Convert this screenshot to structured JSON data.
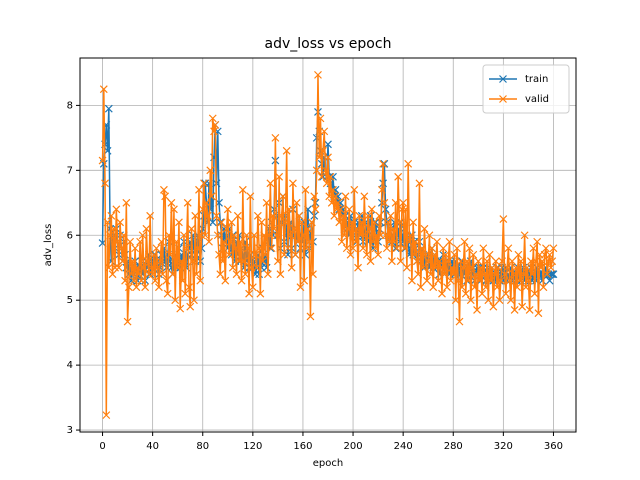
{
  "chart_data": {
    "type": "line",
    "title": "adv_loss vs epoch",
    "xlabel": "epoch",
    "ylabel": "adv_loss",
    "x": [
      0,
      1,
      2,
      3,
      4,
      5,
      6,
      7,
      8,
      9,
      10,
      11,
      12,
      13,
      14,
      15,
      16,
      17,
      18,
      19,
      20,
      21,
      22,
      23,
      24,
      25,
      26,
      27,
      28,
      29,
      30,
      31,
      32,
      33,
      34,
      35,
      36,
      37,
      38,
      39,
      40,
      41,
      42,
      43,
      44,
      45,
      46,
      47,
      48,
      49,
      50,
      51,
      52,
      53,
      54,
      55,
      56,
      57,
      58,
      59,
      60,
      61,
      62,
      63,
      64,
      65,
      66,
      67,
      68,
      69,
      70,
      71,
      72,
      73,
      74,
      75,
      76,
      77,
      78,
      79,
      80,
      81,
      82,
      83,
      84,
      85,
      86,
      87,
      88,
      89,
      90,
      91,
      92,
      93,
      94,
      95,
      96,
      97,
      98,
      99,
      100,
      101,
      102,
      103,
      104,
      105,
      106,
      107,
      108,
      109,
      110,
      111,
      112,
      113,
      114,
      115,
      116,
      117,
      118,
      119,
      120,
      121,
      122,
      123,
      124,
      125,
      126,
      127,
      128,
      129,
      130,
      131,
      132,
      133,
      134,
      135,
      136,
      137,
      138,
      139,
      140,
      141,
      142,
      143,
      144,
      145,
      146,
      147,
      148,
      149,
      150,
      151,
      152,
      153,
      154,
      155,
      156,
      157,
      158,
      159,
      160,
      161,
      162,
      163,
      164,
      165,
      166,
      167,
      168,
      169,
      170,
      171,
      172,
      173,
      174,
      175,
      176,
      177,
      178,
      179,
      180,
      181,
      182,
      183,
      184,
      185,
      186,
      187,
      188,
      189,
      190,
      191,
      192,
      193,
      194,
      195,
      196,
      197,
      198,
      199,
      200,
      201,
      202,
      203,
      204,
      205,
      206,
      207,
      208,
      209,
      210,
      211,
      212,
      213,
      214,
      215,
      216,
      217,
      218,
      219,
      220,
      221,
      222,
      223,
      224,
      225,
      226,
      227,
      228,
      229,
      230,
      231,
      232,
      233,
      234,
      235,
      236,
      237,
      238,
      239,
      240,
      241,
      242,
      243,
      244,
      245,
      246,
      247,
      248,
      249,
      250,
      251,
      252,
      253,
      254,
      255,
      256,
      257,
      258,
      259,
      260,
      261,
      262,
      263,
      264,
      265,
      266,
      267,
      268,
      269,
      270,
      271,
      272,
      273,
      274,
      275,
      276,
      277,
      278,
      279,
      280,
      281,
      282,
      283,
      284,
      285,
      286,
      287,
      288,
      289,
      290,
      291,
      292,
      293,
      294,
      295,
      296,
      297,
      298,
      299,
      300,
      301,
      302,
      303,
      304,
      305,
      306,
      307,
      308,
      309,
      310,
      311,
      312,
      313,
      314,
      315,
      316,
      317,
      318,
      319,
      320,
      321,
      322,
      323,
      324,
      325,
      326,
      327,
      328,
      329,
      330,
      331,
      332,
      333,
      334,
      335,
      336,
      337,
      338,
      339,
      340,
      341,
      342,
      343,
      344,
      345,
      346,
      347,
      348,
      349,
      350,
      351,
      352,
      353,
      354,
      355,
      356,
      357,
      358,
      359,
      360
    ],
    "series": [
      {
        "name": "train",
        "color": "#1f77b4",
        "values": [
          5.88,
          7.1,
          7.4,
          7.7,
          7.3,
          7.95,
          6.1,
          5.6,
          5.9,
          6.0,
          5.8,
          6.1,
          5.9,
          5.7,
          6.0,
          5.8,
          5.6,
          5.9,
          5.7,
          5.5,
          5.6,
          5.4,
          5.5,
          5.3,
          5.5,
          5.4,
          5.6,
          5.5,
          5.3,
          5.4,
          5.5,
          5.6,
          5.4,
          5.5,
          5.3,
          5.6,
          5.5,
          5.7,
          5.4,
          5.6,
          5.5,
          5.6,
          5.7,
          5.5,
          5.6,
          5.4,
          5.5,
          5.7,
          5.6,
          5.8,
          5.6,
          5.5,
          5.7,
          5.9,
          5.6,
          5.5,
          5.4,
          5.6,
          5.7,
          5.5,
          5.6,
          5.8,
          5.5,
          5.7,
          5.6,
          5.9,
          5.6,
          5.5,
          5.7,
          5.8,
          5.9,
          5.7,
          6.0,
          5.8,
          5.6,
          5.7,
          6.0,
          5.9,
          5.6,
          5.8,
          6.1,
          6.3,
          6.8,
          6.5,
          6.2,
          6.8,
          6.4,
          6.6,
          6.2,
          7.2,
          7.7,
          6.8,
          7.6,
          6.5,
          6.2,
          6.0,
          5.8,
          6.1,
          5.9,
          6.0,
          5.8,
          6.1,
          5.9,
          5.7,
          6.0,
          5.8,
          5.6,
          5.9,
          5.7,
          6.0,
          5.6,
          5.8,
          5.7,
          5.5,
          5.9,
          5.6,
          5.8,
          5.5,
          5.7,
          5.6,
          5.5,
          5.6,
          5.4,
          5.5,
          5.7,
          5.4,
          5.6,
          5.5,
          5.8,
          5.6,
          5.7,
          5.5,
          5.9,
          6.1,
          5.8,
          6.2,
          6.0,
          6.4,
          7.15,
          6.3,
          6.0,
          6.5,
          5.8,
          6.2,
          6.6,
          5.9,
          6.3,
          6.0,
          5.7,
          6.1,
          6.2,
          5.8,
          6.4,
          6.0,
          5.7,
          6.1,
          5.9,
          6.3,
          5.8,
          6.0,
          5.9,
          6.2,
          5.7,
          6.1,
          6.4,
          5.8,
          6.0,
          6.2,
          5.9,
          6.3,
          6.5,
          7.5,
          7.9,
          7.6,
          7.3,
          7.1,
          6.9,
          7.2,
          7.0,
          6.9,
          7.4,
          6.9,
          6.8,
          6.7,
          6.9,
          6.6,
          6.7,
          6.5,
          6.6,
          6.4,
          6.5,
          6.3,
          6.4,
          6.2,
          6.3,
          6.1,
          6.2,
          6.0,
          6.3,
          6.1,
          6.0,
          6.2,
          6.1,
          5.9,
          6.2,
          6.0,
          6.1,
          6.3,
          5.9,
          6.0,
          6.2,
          6.0,
          5.9,
          6.1,
          6.3,
          6.0,
          5.8,
          6.1,
          6.2,
          6.0,
          5.9,
          6.1,
          6.2,
          6.5,
          6.8,
          7.1,
          6.4,
          6.2,
          6.0,
          5.9,
          6.1,
          5.9,
          6.0,
          6.2,
          5.8,
          6.0,
          6.1,
          5.9,
          6.2,
          6.0,
          5.9,
          6.1,
          5.8,
          6.0,
          5.9,
          5.7,
          5.8,
          6.0,
          5.7,
          5.9,
          5.8,
          5.6,
          5.7,
          5.9,
          5.6,
          5.8,
          5.7,
          5.5,
          5.7,
          5.6,
          5.7,
          5.5,
          5.6,
          5.8,
          5.5,
          5.7,
          5.6,
          5.5,
          5.6,
          5.4,
          5.6,
          5.5,
          5.7,
          5.4,
          5.6,
          5.5,
          5.6,
          5.4,
          5.5,
          5.6,
          5.5,
          5.4,
          5.6,
          5.5,
          5.3,
          5.5,
          5.4,
          5.6,
          5.5,
          5.4,
          5.5,
          5.3,
          5.5,
          5.4,
          5.6,
          5.4,
          5.5,
          5.3,
          5.4,
          5.5,
          5.4,
          5.5,
          5.3,
          5.4,
          5.5,
          5.4,
          5.3,
          5.5,
          5.4,
          5.3,
          5.4,
          5.5,
          5.3,
          5.4,
          5.3,
          5.5,
          5.4,
          5.3,
          5.4,
          5.5,
          5.3,
          5.4,
          5.5,
          5.3,
          5.4,
          5.3,
          5.5,
          5.4,
          5.3,
          5.4,
          5.4,
          5.3,
          5.5,
          5.4,
          5.3,
          5.4,
          5.5,
          5.3,
          5.4,
          5.4,
          5.3,
          5.4,
          5.5,
          5.3,
          5.4,
          5.4,
          5.3,
          5.5,
          5.4,
          5.4,
          5.4,
          5.3,
          5.4,
          5.4,
          5.5,
          5.4,
          5.4,
          5.3,
          5.4,
          5.4,
          5.4
        ]
      },
      {
        "name": "valid",
        "color": "#ff7f0e",
        "values": [
          7.15,
          8.25,
          6.8,
          3.23,
          6.2,
          5.5,
          6.0,
          6.3,
          5.4,
          6.1,
          5.5,
          6.4,
          5.9,
          5.5,
          6.2,
          5.8,
          5.6,
          6.0,
          5.3,
          6.5,
          4.67,
          5.2,
          5.9,
          5.4,
          5.6,
          5.3,
          5.8,
          5.2,
          5.5,
          5.4,
          5.9,
          5.3,
          6.0,
          5.5,
          5.2,
          6.1,
          5.6,
          5.4,
          6.3,
          5.5,
          5.4,
          5.7,
          5.3,
          5.8,
          5.5,
          5.2,
          5.6,
          5.9,
          5.4,
          6.7,
          6.6,
          5.3,
          5.1,
          6.0,
          5.7,
          6.5,
          5.4,
          6.4,
          5.0,
          5.9,
          5.5,
          6.2,
          4.87,
          5.6,
          5.3,
          6.0,
          5.1,
          5.8,
          6.5,
          5.2,
          4.9,
          6.1,
          5.6,
          5.0,
          6.3,
          5.4,
          5.8,
          6.7,
          5.3,
          6.0,
          6.4,
          6.8,
          6.0,
          6.5,
          6.3,
          5.9,
          7.0,
          6.6,
          7.8,
          7.6,
          7.7,
          6.3,
          6.0,
          5.7,
          5.4,
          6.2,
          5.6,
          5.9,
          5.3,
          6.1,
          6.4,
          5.7,
          5.9,
          6.2,
          5.5,
          6.0,
          5.8,
          5.4,
          6.3,
          5.6,
          5.9,
          5.3,
          6.7,
          5.6,
          5.4,
          6.0,
          5.8,
          5.1,
          6.6,
          5.5,
          5.2,
          6.0,
          5.7,
          5.5,
          6.3,
          5.8,
          5.1,
          6.2,
          5.6,
          6.0,
          5.7,
          6.5,
          5.4,
          6.0,
          6.8,
          5.8,
          6.3,
          6.1,
          7.5,
          6.0,
          5.6,
          6.9,
          5.4,
          6.3,
          6.6,
          5.7,
          6.2,
          7.3,
          5.8,
          6.4,
          6.0,
          5.5,
          6.8,
          6.1,
          5.7,
          6.5,
          5.9,
          6.3,
          5.2,
          6.2,
          6.0,
          5.3,
          6.7,
          5.8,
          6.1,
          5.9,
          4.75,
          6.2,
          5.4,
          6.6,
          6.4,
          7.0,
          8.47,
          7.2,
          7.8,
          6.9,
          7.3,
          7.6,
          7.0,
          6.8,
          7.2,
          6.6,
          6.9,
          6.5,
          6.7,
          6.3,
          6.6,
          6.4,
          6.5,
          6.2,
          6.4,
          5.9,
          6.3,
          6.0,
          6.6,
          5.8,
          6.1,
          6.4,
          5.7,
          6.2,
          5.8,
          6.7,
          5.9,
          6.1,
          5.5,
          6.3,
          6.0,
          6.2,
          5.8,
          6.6,
          6.0,
          5.7,
          6.3,
          6.1,
          5.6,
          6.4,
          5.9,
          6.2,
          5.8,
          6.0,
          5.7,
          6.3,
          6.0,
          6.7,
          7.1,
          6.5,
          6.0,
          5.8,
          6.2,
          5.9,
          6.3,
          5.6,
          6.1,
          5.9,
          6.5,
          5.8,
          6.9,
          6.2,
          5.6,
          6.4,
          6.5,
          5.8,
          6.4,
          5.5,
          7.1,
          5.9,
          6.0,
          5.3,
          6.2,
          5.7,
          5.9,
          5.6,
          5.4,
          6.8,
          5.2,
          5.8,
          5.5,
          6.1,
          5.7,
          5.3,
          5.6,
          6.0,
          5.4,
          5.8,
          5.2,
          5.7,
          5.5,
          5.9,
          5.3,
          5.6,
          5.5,
          5.1,
          5.8,
          5.4,
          5.7,
          5.2,
          5.6,
          5.9,
          5.3,
          5.5,
          5.4,
          5.7,
          5.0,
          5.8,
          5.3,
          4.67,
          5.6,
          5.2,
          5.5,
          5.9,
          5.1,
          5.6,
          5.3,
          5.8,
          5.0,
          5.5,
          5.7,
          5.2,
          5.4,
          4.85,
          5.6,
          5.3,
          5.5,
          5.1,
          5.8,
          5.4,
          5.2,
          5.6,
          5.0,
          5.7,
          5.3,
          5.5,
          4.9,
          5.4,
          5.6,
          5.2,
          5.5,
          5.0,
          5.3,
          5.6,
          6.25,
          5.4,
          5.1,
          5.5,
          5.8,
          5.3,
          5.0,
          5.6,
          5.4,
          4.85,
          5.5,
          5.2,
          5.7,
          5.3,
          5.6,
          4.9,
          5.4,
          6.0,
          5.2,
          5.5,
          5.3,
          4.85,
          5.6,
          5.4,
          5.8,
          5.1,
          5.6,
          5.9,
          4.8,
          5.7,
          5.5,
          5.6,
          5.2,
          5.7,
          5.8,
          5.4,
          5.6,
          5.7,
          5.5,
          5.6,
          5.8
        ]
      }
    ],
    "xlim": [
      -18,
      378
    ],
    "xticks": [
      0,
      40,
      80,
      120,
      160,
      200,
      240,
      280,
      320,
      360
    ],
    "ylim": [
      2.97,
      8.73
    ],
    "yticks": [
      3,
      4,
      5,
      6,
      7,
      8
    ],
    "grid": true,
    "legend": "upper right",
    "marker": "x"
  }
}
